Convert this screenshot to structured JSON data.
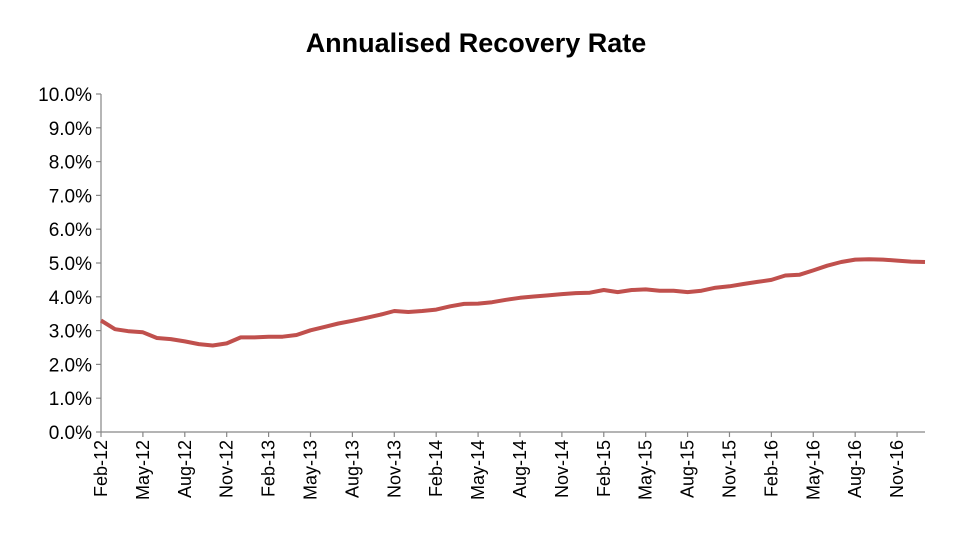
{
  "chart_data": {
    "type": "line",
    "title": "Annualised Recovery Rate",
    "xlabel": "",
    "ylabel": "",
    "ylim": [
      0,
      10
    ],
    "y_format": "percent_1dp",
    "y_ticks": [
      0,
      1,
      2,
      3,
      4,
      5,
      6,
      7,
      8,
      9,
      10
    ],
    "y_tick_labels": [
      "0.0%",
      "1.0%",
      "2.0%",
      "3.0%",
      "4.0%",
      "5.0%",
      "6.0%",
      "7.0%",
      "8.0%",
      "9.0%",
      "10.0%"
    ],
    "x_tick_labels": [
      "Feb-12",
      "May-12",
      "Aug-12",
      "Nov-12",
      "Feb-13",
      "May-13",
      "Aug-13",
      "Nov-13",
      "Feb-14",
      "May-14",
      "Aug-14",
      "Nov-14",
      "Feb-15",
      "May-15",
      "Aug-15",
      "Nov-15",
      "Feb-16",
      "May-16",
      "Aug-16",
      "Nov-16"
    ],
    "x": [
      "Feb-12",
      "Mar-12",
      "Apr-12",
      "May-12",
      "Jun-12",
      "Jul-12",
      "Aug-12",
      "Sep-12",
      "Oct-12",
      "Nov-12",
      "Dec-12",
      "Jan-13",
      "Feb-13",
      "Mar-13",
      "Apr-13",
      "May-13",
      "Jun-13",
      "Jul-13",
      "Aug-13",
      "Sep-13",
      "Oct-13",
      "Nov-13",
      "Dec-13",
      "Jan-14",
      "Feb-14",
      "Mar-14",
      "Apr-14",
      "May-14",
      "Jun-14",
      "Jul-14",
      "Aug-14",
      "Sep-14",
      "Oct-14",
      "Nov-14",
      "Dec-14",
      "Jan-15",
      "Feb-15",
      "Mar-15",
      "Apr-15",
      "May-15",
      "Jun-15",
      "Jul-15",
      "Aug-15",
      "Sep-15",
      "Oct-15",
      "Nov-15",
      "Dec-15",
      "Jan-16",
      "Feb-16",
      "Mar-16",
      "Apr-16",
      "May-16",
      "Jun-16",
      "Jul-16",
      "Aug-16",
      "Sep-16",
      "Oct-16",
      "Nov-16",
      "Dec-16",
      "Jan-17"
    ],
    "series": [
      {
        "color": "#c0504d",
        "values": [
          3.3,
          3.04,
          2.98,
          2.95,
          2.78,
          2.75,
          2.68,
          2.6,
          2.56,
          2.62,
          2.8,
          2.8,
          2.82,
          2.82,
          2.87,
          3.01,
          3.11,
          3.21,
          3.29,
          3.38,
          3.47,
          3.58,
          3.55,
          3.58,
          3.62,
          3.72,
          3.79,
          3.8,
          3.84,
          3.91,
          3.97,
          4.01,
          4.04,
          4.08,
          4.11,
          4.12,
          4.2,
          4.14,
          4.2,
          4.22,
          4.18,
          4.18,
          4.14,
          4.18,
          4.27,
          4.31,
          4.38,
          4.44,
          4.5,
          4.63,
          4.65,
          4.78,
          4.92,
          5.03,
          5.1,
          5.11,
          5.1,
          5.07,
          5.04,
          5.03
        ]
      }
    ],
    "grid": false,
    "legend": "none"
  }
}
